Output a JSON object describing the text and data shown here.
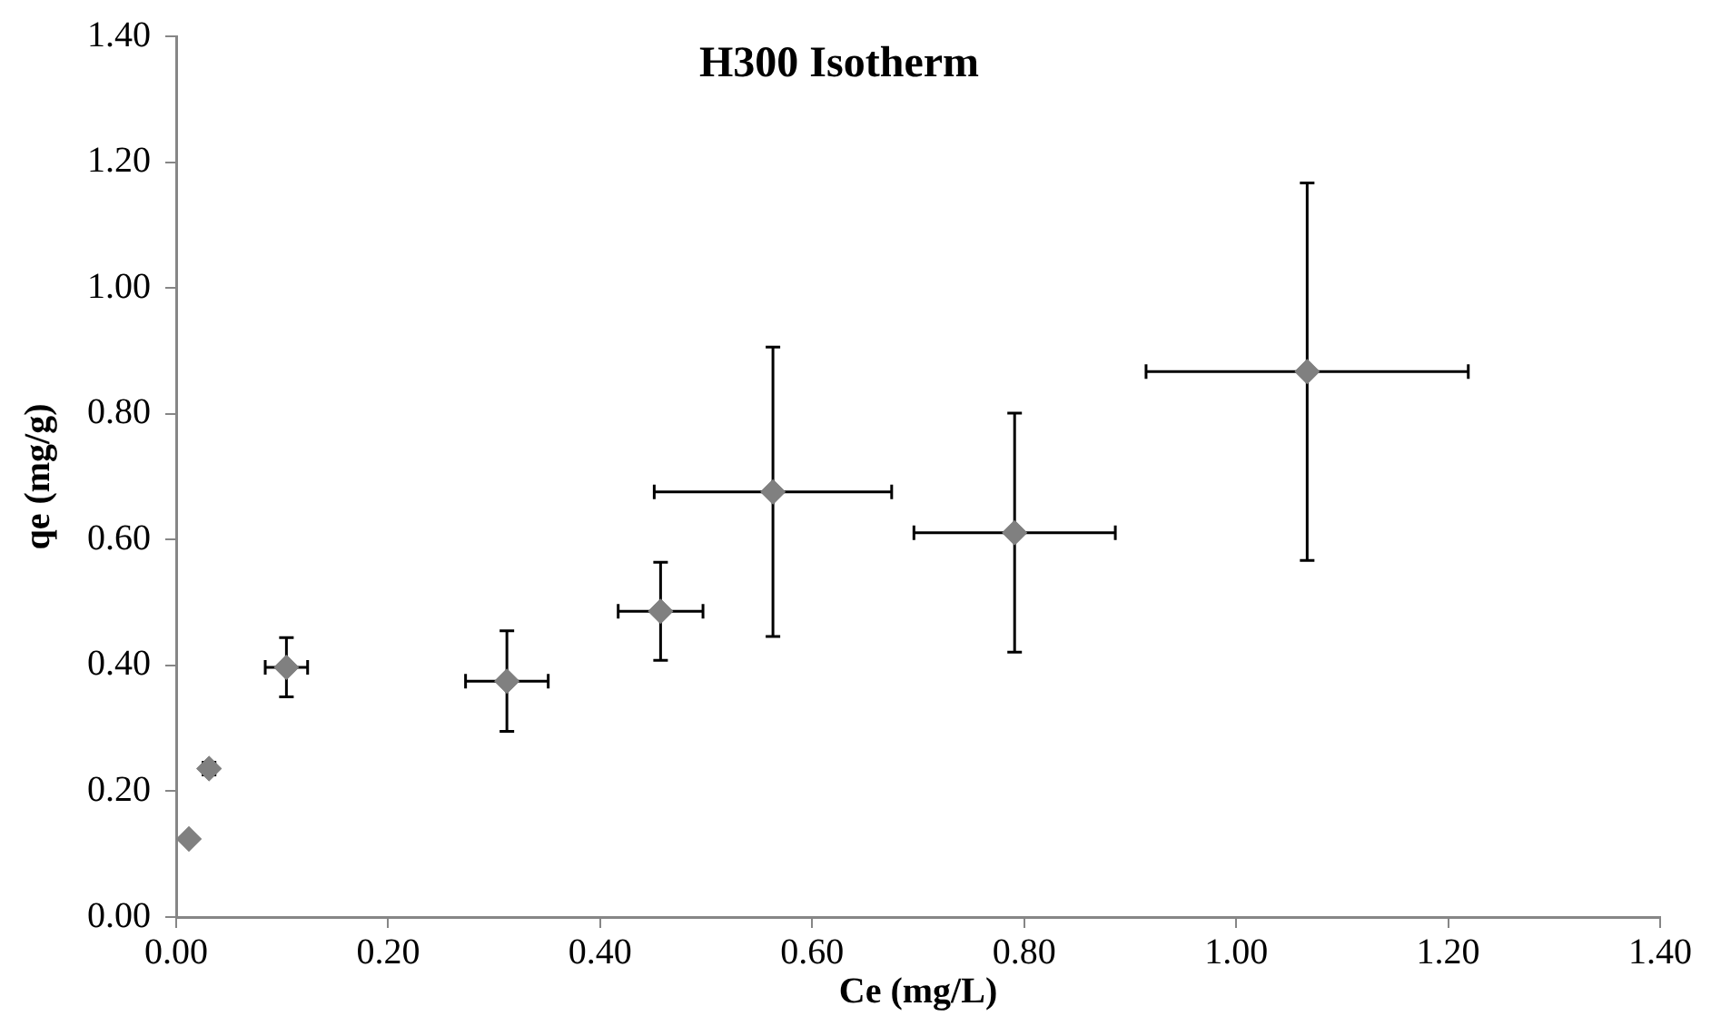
{
  "chart_data": {
    "type": "scatter",
    "title": "H300 Isotherm",
    "xlabel": "Ce (mg/L)",
    "ylabel": "qe (mg/g)",
    "x": [
      0.012,
      0.031,
      0.104,
      0.312,
      0.457,
      0.563,
      0.791,
      1.067
    ],
    "values": [
      0.124,
      0.236,
      0.397,
      0.375,
      0.486,
      0.676,
      0.611,
      0.867
    ],
    "errors": [
      null,
      0.01,
      0.047,
      0.08,
      0.078,
      0.23,
      0.19,
      0.3
    ],
    "xerrors": [
      null,
      0.005,
      0.02,
      0.039,
      0.04,
      0.112,
      0.095,
      0.152
    ],
    "color": "#808080",
    "marker": "diamond",
    "xlim": [
      0,
      1.4
    ],
    "xticks": [
      {
        "value": 0,
        "label": "0.00"
      },
      {
        "value": 0.2,
        "label": "0.20"
      },
      {
        "value": 0.4,
        "label": "0.40"
      },
      {
        "value": 0.6,
        "label": "0.60"
      },
      {
        "value": 0.8,
        "label": "0.80"
      },
      {
        "value": 1,
        "label": "1.00"
      },
      {
        "value": 1.2,
        "label": "1.20"
      },
      {
        "value": 1.4,
        "label": "1.40"
      }
    ],
    "ylim": [
      0,
      1.4
    ],
    "yticks": [
      {
        "value": 0,
        "label": "0.00"
      },
      {
        "value": 0.2,
        "label": "0.20"
      },
      {
        "value": 0.4,
        "label": "0.40"
      },
      {
        "value": 0.6,
        "label": "0.60"
      },
      {
        "value": 0.8,
        "label": "0.80"
      },
      {
        "value": 1,
        "label": "1.00"
      },
      {
        "value": 1.2,
        "label": "1.20"
      },
      {
        "value": 1.4,
        "label": "1.40"
      }
    ],
    "grid": false,
    "legend": false
  }
}
